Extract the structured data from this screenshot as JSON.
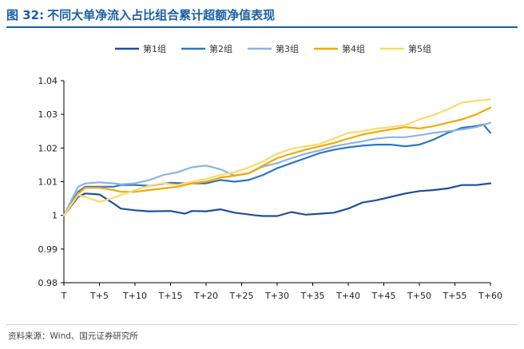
{
  "header": {
    "figure_label": "图 32:",
    "title_text": "不同大单净流入占比组合累计超额净值表现"
  },
  "footer": {
    "source_text": "资料来源：Wind、国元证券研究所"
  },
  "chart_data": {
    "type": "line",
    "title": "不同大单净流入占比组合累计超额净值表现",
    "xlabel": "",
    "ylabel": "",
    "ylim": [
      0.98,
      1.04
    ],
    "yticks": [
      "0.98",
      "0.99",
      "1",
      "1.01",
      "1.02",
      "1.03",
      "1.04"
    ],
    "ytick_values": [
      0.98,
      0.99,
      1.0,
      1.01,
      1.02,
      1.03,
      1.04
    ],
    "xlim": [
      0,
      60
    ],
    "xticks": [
      "T",
      "T+5",
      "T+10",
      "T+15",
      "T+20",
      "T+25",
      "T+30",
      "T+35",
      "T+40",
      "T+45",
      "T+50",
      "T+55",
      "T+60"
    ],
    "xtick_values": [
      0,
      5,
      10,
      15,
      20,
      25,
      30,
      35,
      40,
      45,
      50,
      55,
      60
    ],
    "legend_position": "top",
    "series": [
      {
        "name": "第1组",
        "color": "#1f4e9c",
        "x": [
          0,
          2,
          3,
          5,
          7,
          8,
          10,
          12,
          15,
          17,
          18,
          20,
          22,
          24,
          27,
          28,
          30,
          32,
          34,
          36,
          38,
          40,
          42,
          44,
          46,
          48,
          50,
          52,
          54,
          56,
          58,
          60
        ],
        "y": [
          1.0,
          1.0055,
          1.0065,
          1.0062,
          1.0035,
          1.002,
          1.0015,
          1.0012,
          1.0013,
          1.0005,
          1.0013,
          1.0012,
          1.0018,
          1.0008,
          1.0,
          0.9998,
          0.9998,
          1.001,
          1.0002,
          1.0005,
          1.0008,
          1.002,
          1.0038,
          1.0045,
          1.0055,
          1.0065,
          1.0072,
          1.0075,
          1.008,
          1.009,
          1.009,
          1.0095
        ]
      },
      {
        "name": "第2组",
        "color": "#2e75c6",
        "x": [
          0,
          2,
          3,
          5,
          7,
          8,
          10,
          12,
          15,
          17,
          20,
          22,
          24,
          26,
          28,
          30,
          32,
          34,
          36,
          38,
          40,
          42,
          44,
          46,
          48,
          50,
          52,
          54,
          56,
          58,
          59,
          60
        ],
        "y": [
          1.0,
          1.007,
          1.0085,
          1.0085,
          1.0085,
          1.009,
          1.009,
          1.0088,
          1.0097,
          1.0095,
          1.0095,
          1.0105,
          1.01,
          1.0105,
          1.012,
          1.014,
          1.0155,
          1.017,
          1.0185,
          1.0195,
          1.0202,
          1.0207,
          1.021,
          1.021,
          1.0205,
          1.021,
          1.0225,
          1.0245,
          1.026,
          1.0265,
          1.027,
          1.0245
        ]
      },
      {
        "name": "第3组",
        "color": "#8ab4e2",
        "x": [
          0,
          2,
          3,
          5,
          7,
          8,
          10,
          12,
          14,
          16,
          18,
          20,
          22,
          24,
          26,
          28,
          30,
          32,
          34,
          36,
          38,
          40,
          42,
          44,
          46,
          48,
          50,
          52,
          54,
          56,
          58,
          60
        ],
        "y": [
          1.0,
          1.0085,
          1.0095,
          1.0098,
          1.0095,
          1.0092,
          1.0095,
          1.0105,
          1.012,
          1.0128,
          1.0143,
          1.0148,
          1.0137,
          1.0118,
          1.0125,
          1.0145,
          1.0155,
          1.017,
          1.0183,
          1.0193,
          1.0205,
          1.0213,
          1.022,
          1.0228,
          1.0232,
          1.0232,
          1.0238,
          1.0245,
          1.025,
          1.0255,
          1.0262,
          1.0275
        ]
      },
      {
        "name": "第4组",
        "color": "#f2a900",
        "x": [
          0,
          2,
          3,
          5,
          7,
          8,
          10,
          12,
          14,
          16,
          18,
          20,
          22,
          24,
          26,
          28,
          30,
          32,
          34,
          36,
          38,
          40,
          42,
          44,
          46,
          48,
          50,
          52,
          54,
          56,
          58,
          60
        ],
        "y": [
          1.0,
          1.0065,
          1.0082,
          1.0082,
          1.0075,
          1.007,
          1.007,
          1.0075,
          1.008,
          1.0085,
          1.0095,
          1.01,
          1.0112,
          1.0118,
          1.0125,
          1.0148,
          1.017,
          1.0183,
          1.0195,
          1.0205,
          1.0215,
          1.0228,
          1.024,
          1.0248,
          1.0255,
          1.0262,
          1.0258,
          1.0265,
          1.0275,
          1.0285,
          1.03,
          1.032
        ]
      },
      {
        "name": "第5组",
        "color": "#fbd96b",
        "x": [
          0,
          2,
          3,
          5,
          7,
          8,
          10,
          12,
          14,
          16,
          18,
          20,
          22,
          24,
          26,
          28,
          30,
          32,
          34,
          36,
          38,
          40,
          42,
          44,
          46,
          48,
          50,
          52,
          54,
          56,
          58,
          60
        ],
        "y": [
          1.0,
          1.006,
          1.0055,
          1.004,
          1.0052,
          1.006,
          1.0075,
          1.0088,
          1.0095,
          1.009,
          1.01,
          1.0108,
          1.012,
          1.0128,
          1.0142,
          1.016,
          1.0183,
          1.0198,
          1.0205,
          1.0212,
          1.0228,
          1.0245,
          1.025,
          1.0258,
          1.0262,
          1.0268,
          1.0285,
          1.0298,
          1.0315,
          1.0335,
          1.034,
          1.0345
        ]
      }
    ]
  }
}
